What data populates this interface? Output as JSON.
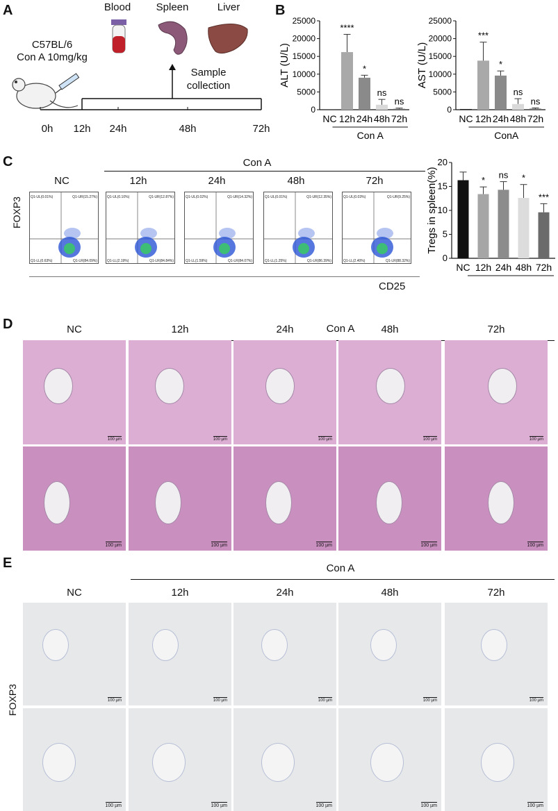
{
  "panels": {
    "A": "A",
    "B": "B",
    "C": "C",
    "D": "D",
    "E": "E"
  },
  "panelA": {
    "mouse_line1": "C57BL/6",
    "mouse_line2": "Con A 10mg/kg",
    "organs": [
      "Blood",
      "Spleen",
      "Liver"
    ],
    "sample1": "Sample",
    "sample2": "collection",
    "timeline": [
      "0h",
      "12h",
      "24h",
      "48h",
      "72h"
    ]
  },
  "panelB": {
    "charts": [
      {
        "ylabel": "ALT (U/L)",
        "ticks": [
          "25000",
          "20000",
          "15000",
          "10000",
          "5000",
          "0"
        ],
        "cats": [
          "NC",
          "12h",
          "24h",
          "48h",
          "72h"
        ],
        "group": "Con A",
        "values": [
          50,
          16200,
          9000,
          1400,
          250
        ],
        "errors": [
          0,
          5000,
          700,
          1500,
          200
        ],
        "sig": [
          "",
          "****",
          "*",
          "ns",
          "ns"
        ]
      },
      {
        "ylabel": "AST (U/L)",
        "ticks": [
          "25000",
          "20000",
          "15000",
          "10000",
          "5000",
          "0"
        ],
        "cats": [
          "NC",
          "12h",
          "24h",
          "48h",
          "72h"
        ],
        "group": "ConA",
        "values": [
          200,
          13800,
          9600,
          1600,
          300
        ],
        "errors": [
          0,
          5200,
          1300,
          1500,
          200
        ],
        "sig": [
          "",
          "***",
          "*",
          "ns",
          "ns"
        ]
      }
    ]
  },
  "panelC": {
    "ylabel": "FOXP3",
    "xlabel": "CD25",
    "group": "Con A",
    "titles": [
      "NC",
      "12h",
      "24h",
      "48h",
      "72h"
    ],
    "quadrants": [
      [
        "Q1-UL(0.01%)",
        "Q1-UR(15.27%)",
        "Q1-LL(0.63%)",
        "Q1-LR(84.09%)"
      ],
      [
        "Q1-UL(0.10%)",
        "Q1-UR(12.87%)",
        "Q1-LL(2.19%)",
        "Q1-LR(84.84%)"
      ],
      [
        "Q1-UL(0.02%)",
        "Q1-UR(14.32%)",
        "Q1-LL(1.59%)",
        "Q1-LR(84.07%)"
      ],
      [
        "Q1-UL(0.01%)",
        "Q1-UR(12.35%)",
        "Q1-LL(1.25%)",
        "Q1-LR(86.39%)"
      ],
      [
        "Q1-UL(0.03%)",
        "Q1-UR(9.25%)",
        "Q1-LL(2.40%)",
        "Q1-LR(88.32%)"
      ]
    ],
    "bar": {
      "ylabel": "Tregs in spleen(%)",
      "ticks": [
        "20",
        "15",
        "10",
        "5",
        "0"
      ],
      "cats": [
        "NC",
        "12h",
        "24h",
        "48h",
        "72h"
      ],
      "group": "ConA",
      "values": [
        16.3,
        13.4,
        14.3,
        12.6,
        9.6
      ],
      "errors": [
        1.7,
        1.5,
        1.7,
        2.8,
        1.8
      ],
      "sig": [
        "",
        "*",
        "ns",
        "*",
        "***"
      ]
    }
  },
  "panelD": {
    "group": "Con A",
    "titles": [
      "NC",
      "12h",
      "24h",
      "48h",
      "72h"
    ],
    "scale": "100 µm"
  },
  "panelE": {
    "group": "Con A",
    "titles": [
      "NC",
      "12h",
      "24h",
      "48h",
      "72h"
    ],
    "ylabel": "FOXP3",
    "scale": "100 µm"
  }
}
